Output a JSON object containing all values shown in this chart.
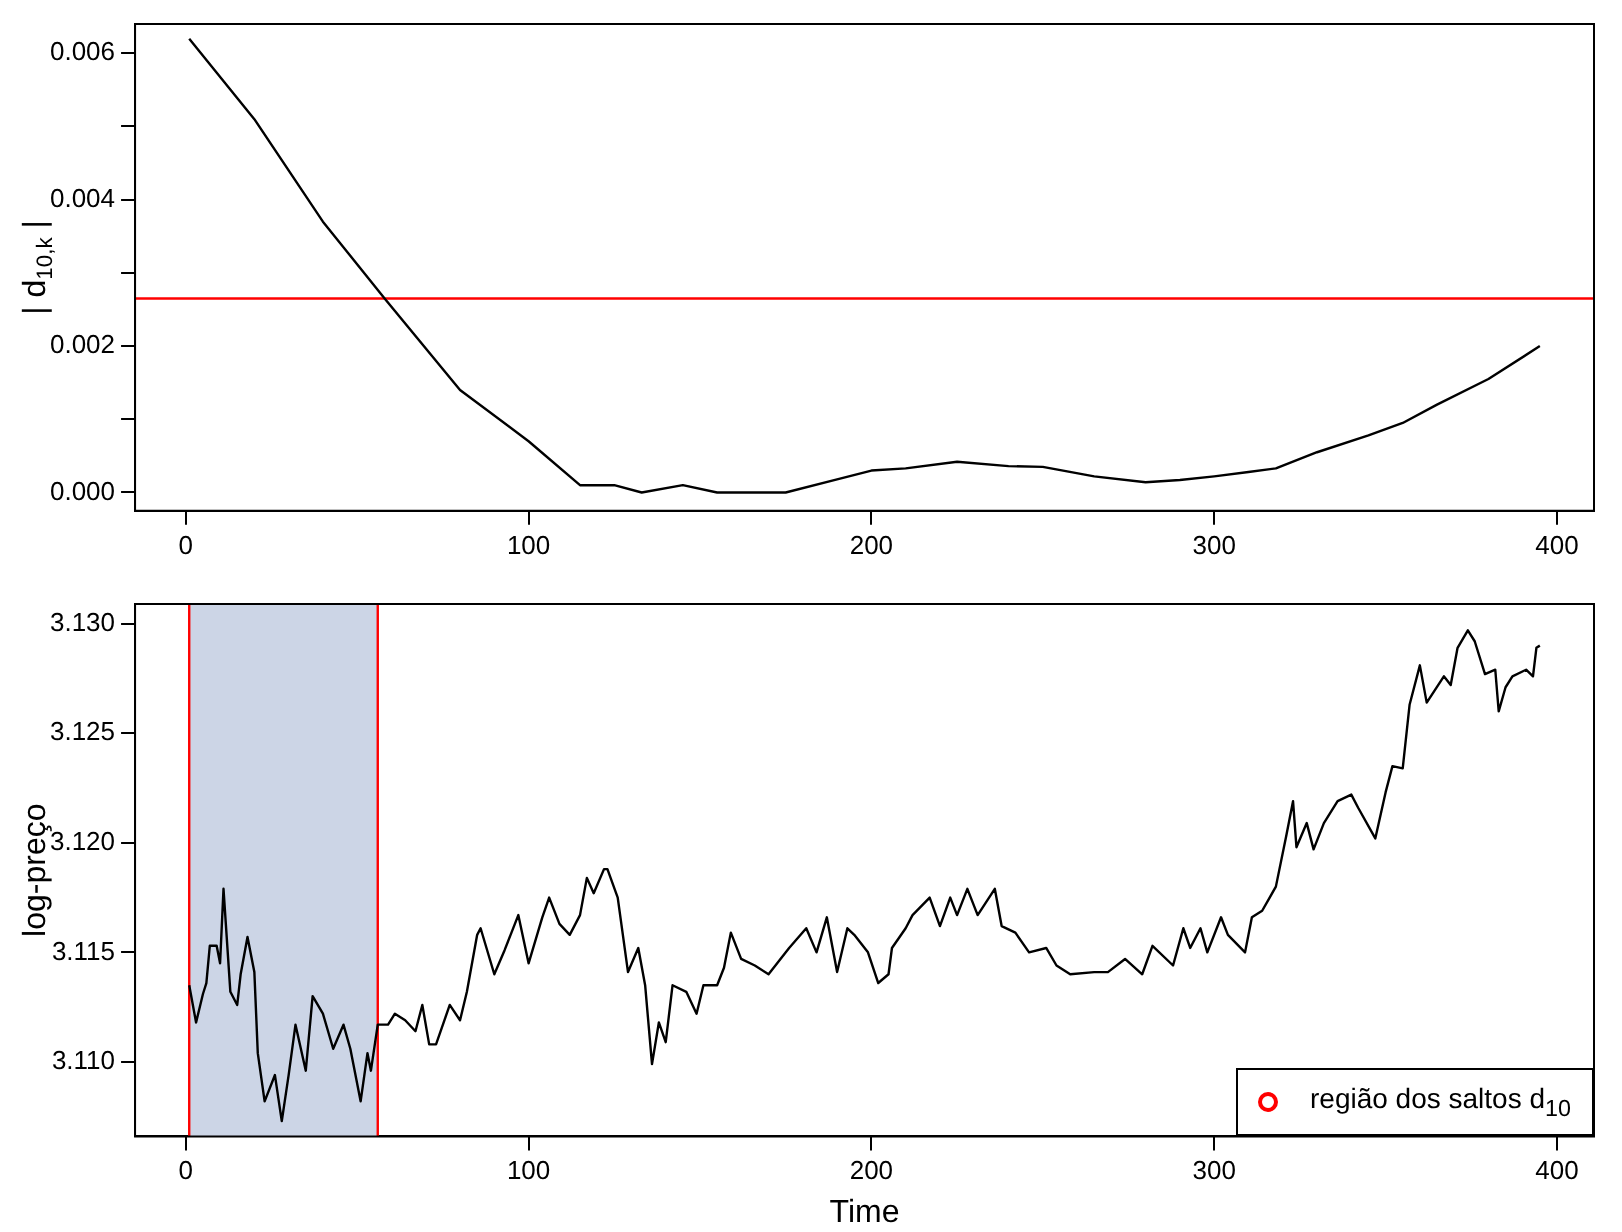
{
  "chart_data": [
    {
      "type": "line",
      "ylabel": "| d$_{10,k}$ |",
      "color": "#000000",
      "x": [
        1,
        20,
        40,
        58,
        80,
        100,
        115,
        125,
        133,
        145,
        155,
        165,
        175,
        190,
        200,
        210,
        225,
        240,
        250,
        265,
        280,
        290,
        300,
        310,
        318,
        330,
        345,
        355,
        365,
        380,
        395
      ],
      "values": [
        0.0062,
        0.0051,
        0.0037,
        0.00265,
        0.0014,
        0.0007,
        0.0001,
        0.0001,
        0.0,
        0.0001,
        0.0,
        0.0,
        0.0,
        0.00018,
        0.0003,
        0.00033,
        0.00042,
        0.00036,
        0.00035,
        0.00022,
        0.00014,
        0.00017,
        0.00022,
        0.00028,
        0.00033,
        0.00055,
        0.00078,
        0.00095,
        0.0012,
        0.00155,
        0.002
      ],
      "xlim": [
        -14.8,
        410.8
      ],
      "xticks": [
        0,
        100,
        200,
        300,
        400
      ],
      "ylim": [
        -0.00025,
        0.0064
      ],
      "yticks": [
        {
          "value": 0,
          "label": "0.000"
        },
        {
          "value": 0.001,
          "label": null
        },
        {
          "value": 0.002,
          "label": "0.002"
        },
        {
          "value": 0.003,
          "label": null
        },
        {
          "value": 0.004,
          "label": "0.004"
        },
        {
          "value": 0.005,
          "label": null
        },
        {
          "value": 0.006,
          "label": "0.006"
        }
      ],
      "ref_lines": [
        {
          "axis": "y",
          "value": 0.00265,
          "color": "#ff0000"
        }
      ],
      "grid": false
    },
    {
      "type": "line",
      "ylabel": "log-preço",
      "xlabel": "Time",
      "color": "#000000",
      "x": [
        1,
        3,
        5,
        6,
        7,
        9,
        10,
        11,
        13,
        15,
        16,
        18,
        20,
        21,
        23,
        26,
        28,
        30,
        32,
        35,
        37,
        40,
        43,
        46,
        48,
        51,
        53,
        54,
        56,
        59,
        61,
        64,
        67,
        69,
        71,
        73,
        77,
        80,
        82,
        85,
        86,
        90,
        93,
        97,
        100,
        104,
        106,
        109,
        112,
        115,
        117,
        119,
        122,
        123,
        126,
        129,
        132,
        134,
        136,
        138,
        140,
        142,
        146,
        149,
        151,
        155,
        157,
        159,
        162,
        166,
        170,
        176,
        181,
        184,
        187,
        190,
        193,
        195,
        199,
        202,
        205,
        206,
        210,
        212,
        217,
        220,
        223,
        225,
        228,
        231,
        236,
        238,
        242,
        246,
        251,
        254,
        258,
        265,
        269,
        274,
        279,
        282,
        288,
        291,
        293,
        296,
        298,
        302,
        304,
        309,
        311,
        314,
        318,
        321,
        323,
        324,
        327,
        329,
        332,
        336,
        340,
        342,
        347,
        350,
        352,
        355,
        357,
        360,
        362,
        367,
        369,
        371,
        374,
        376,
        379,
        382,
        383,
        385,
        387,
        391,
        393,
        394,
        395
      ],
      "values": [
        3.1135,
        3.1118,
        3.1131,
        3.1136,
        3.1153,
        3.1153,
        3.1145,
        3.1179,
        3.1132,
        3.1126,
        3.114,
        3.1157,
        3.1141,
        3.1104,
        3.1082,
        3.1094,
        3.1073,
        3.1094,
        3.1117,
        3.1096,
        3.113,
        3.1122,
        3.1106,
        3.1117,
        3.1106,
        3.1082,
        3.1104,
        3.1096,
        3.1117,
        3.1117,
        3.1122,
        3.1119,
        3.1114,
        3.1126,
        3.1108,
        3.1108,
        3.1126,
        3.1119,
        3.1132,
        3.1158,
        3.1161,
        3.114,
        3.1151,
        3.1167,
        3.1145,
        3.1166,
        3.1175,
        3.1163,
        3.1158,
        3.1167,
        3.1184,
        3.1177,
        3.1188,
        3.1188,
        3.1175,
        3.1141,
        3.1152,
        3.1135,
        3.1099,
        3.1118,
        3.1109,
        3.1135,
        3.1132,
        3.1122,
        3.1135,
        3.1135,
        3.1143,
        3.1159,
        3.1147,
        3.1144,
        3.114,
        3.1152,
        3.1161,
        3.115,
        3.1166,
        3.1141,
        3.1161,
        3.1158,
        3.115,
        3.1136,
        3.114,
        3.1152,
        3.1161,
        3.1167,
        3.1175,
        3.1162,
        3.1175,
        3.1167,
        3.1179,
        3.1167,
        3.1179,
        3.1162,
        3.1159,
        3.115,
        3.1152,
        3.1144,
        3.114,
        3.1141,
        3.1141,
        3.1147,
        3.114,
        3.1153,
        3.1144,
        3.1161,
        3.1152,
        3.1161,
        3.115,
        3.1166,
        3.1158,
        3.115,
        3.1166,
        3.1169,
        3.118,
        3.1203,
        3.1219,
        3.1198,
        3.1209,
        3.1197,
        3.1209,
        3.1219,
        3.1222,
        3.1216,
        3.1202,
        3.1223,
        3.1235,
        3.1234,
        3.1263,
        3.1281,
        3.1264,
        3.1276,
        3.1272,
        3.1289,
        3.1297,
        3.1292,
        3.1277,
        3.1279,
        3.126,
        3.1271,
        3.1276,
        3.1279,
        3.1276,
        3.1289,
        3.129
      ],
      "xlim": [
        -14.8,
        410.8
      ],
      "xticks": [
        0,
        100,
        200,
        300,
        400
      ],
      "ylim": [
        3.1066,
        3.1309
      ],
      "yticks": [
        {
          "value": 3.11,
          "label": "3.110"
        },
        {
          "value": 3.115,
          "label": "3.115"
        },
        {
          "value": 3.12,
          "label": "3.120"
        },
        {
          "value": 3.125,
          "label": "3.125"
        },
        {
          "value": 3.13,
          "label": "3.130"
        }
      ],
      "bands": [
        {
          "axis": "x",
          "from": 1,
          "to": 56,
          "color": "#ccd5e6"
        }
      ],
      "annotations": [
        "região dos saltos d$_{10}$"
      ],
      "ref_lines": [
        {
          "axis": "x",
          "value": 1,
          "color": "#ff0000"
        },
        {
          "axis": "x",
          "value": 56,
          "color": "#ff0000"
        }
      ],
      "grid": false
    }
  ]
}
